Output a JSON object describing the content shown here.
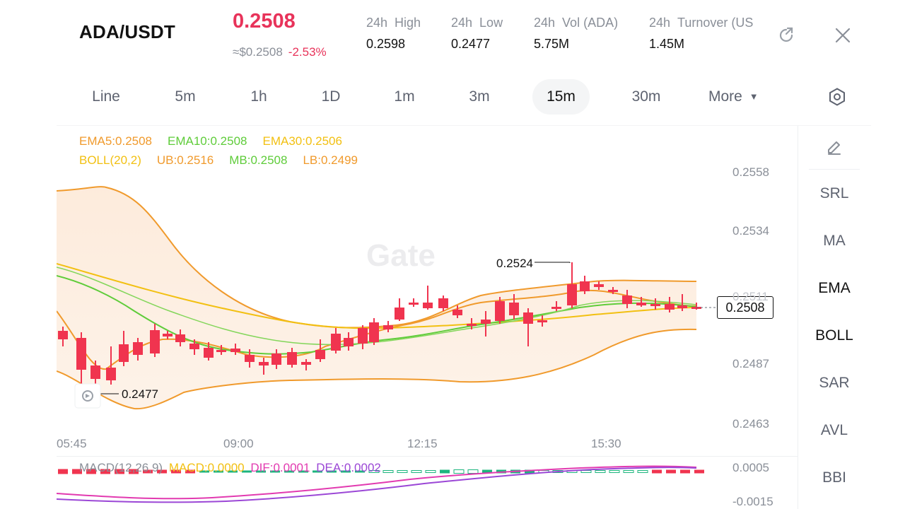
{
  "header": {
    "pair": "ADA/USDT",
    "price": "0.2508",
    "usd_price": "≈$0.2508",
    "change": "-2.53%",
    "stats": [
      {
        "period": "24h",
        "label": "High",
        "value": "0.2598"
      },
      {
        "period": "24h",
        "label": "Low",
        "value": "0.2477"
      },
      {
        "period": "24h",
        "label": "Vol (ADA)",
        "value": "5.75M"
      },
      {
        "period": "24h",
        "label": "Turnover (US",
        "value": "1.45M"
      }
    ],
    "share_icon": "share-icon",
    "close_icon": "close-icon"
  },
  "tabs": {
    "items": [
      "Line",
      "5m",
      "1h",
      "1D",
      "1m",
      "3m",
      "15m",
      "30m",
      "More"
    ],
    "active": "15m",
    "settings_icon": "hexagon-settings-icon"
  },
  "sidebar": {
    "draw_icon": "pencil-icon",
    "items": [
      "SRL",
      "MA",
      "EMA",
      "BOLL",
      "SAR",
      "AVL",
      "BBI"
    ],
    "active": [
      "EMA",
      "BOLL"
    ]
  },
  "indicators": {
    "ema5": "EMA5:0.2508",
    "ema10": "EMA10:0.2508",
    "ema30": "EMA30:0.2506",
    "boll": "BOLL(20,2)",
    "ub": "UB:0.2516",
    "mb": "MB:0.2508",
    "lb": "LB:0.2499"
  },
  "chart": {
    "y_ticks": [
      "0.2558",
      "0.2534",
      "0.2511",
      "0.2487",
      "0.2463"
    ],
    "x_ticks": [
      "05:45",
      "09:00",
      "12:15",
      "15:30"
    ],
    "current_price": "0.2508",
    "high_annotation": "0.2524",
    "low_annotation": "0.2477",
    "watermark": "Gate"
  },
  "macd": {
    "label": "MACD(12,26,9)",
    "macd": "MACD:0.0000",
    "dif": "DIF:0.0001",
    "dea": "DEA:0.0002",
    "y_ticks": [
      "0.0005",
      "-0.0015"
    ]
  },
  "colors": {
    "up": "#1db57e",
    "down": "#f0344f",
    "ema5": "#f09a2c",
    "ema10": "#5fcc3a",
    "ema30": "#f2c012",
    "boll_ub": "#f09a2c",
    "boll_mb": "#5fcc3a",
    "boll_lb": "#f2a33a",
    "dif": "#e23ab0",
    "dea": "#9b47d6",
    "accent": "#e8335a"
  }
}
